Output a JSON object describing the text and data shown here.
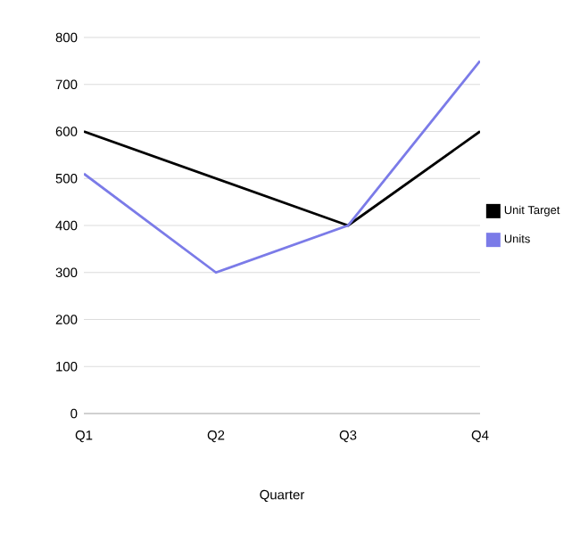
{
  "chart_data": {
    "type": "line",
    "xlabel": "Quarter",
    "categories": [
      "Q1",
      "Q2",
      "Q3",
      "Q4"
    ],
    "series": [
      {
        "name": "Unit Target",
        "color": "#000000",
        "values": [
          600,
          500,
          400,
          600
        ]
      },
      {
        "name": "Units",
        "color": "#7b7be8",
        "values": [
          510,
          300,
          400,
          750
        ]
      }
    ],
    "ylim": [
      0,
      800
    ],
    "yticks": [
      0,
      100,
      200,
      300,
      400,
      500,
      600,
      700,
      800
    ],
    "grid": "y",
    "legend": "right",
    "marker": "none",
    "line_style": "solid"
  }
}
